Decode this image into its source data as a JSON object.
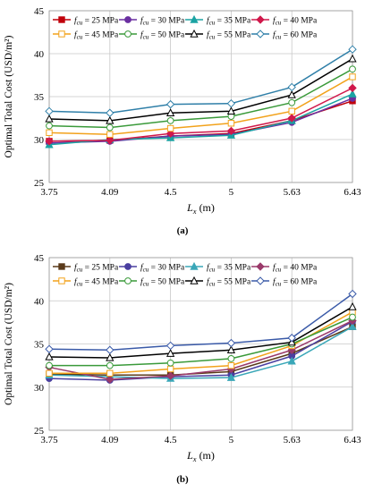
{
  "chart_data": [
    {
      "type": "line",
      "panel_label": "(a)",
      "ylabel": "Optimal Total Cost (USD/m²)",
      "xlabel_main": "L",
      "xlabel_sub": "x",
      "xlabel_unit": " (m)",
      "categories": [
        "3.75",
        "4.09",
        "4.5",
        "5",
        "5.63",
        "6.43"
      ],
      "ylim": [
        25,
        45
      ],
      "yticks": [
        "25",
        "30",
        "35",
        "40",
        "45"
      ],
      "grid": true,
      "legend_position": "top",
      "series": [
        {
          "name": "25 MPa",
          "color": "#c0000b",
          "marker": "square-filled",
          "values": [
            29.8,
            29.9,
            30.4,
            30.7,
            32.2,
            34.5
          ]
        },
        {
          "name": "30 MPa",
          "color": "#6a2fa0",
          "marker": "circle-filled",
          "values": [
            29.6,
            29.8,
            30.4,
            30.6,
            32.0,
            34.8
          ]
        },
        {
          "name": "35 MPa",
          "color": "#1aa3a3",
          "marker": "triangle-filled",
          "values": [
            29.4,
            30.0,
            30.2,
            30.5,
            32.2,
            35.3
          ]
        },
        {
          "name": "40 MPa",
          "color": "#d0184b",
          "marker": "diamond-filled",
          "values": [
            29.8,
            29.9,
            30.7,
            31.0,
            32.5,
            36.0
          ]
        },
        {
          "name": "45 MPa",
          "color": "#f2a21b",
          "marker": "square-open",
          "values": [
            30.8,
            30.6,
            31.3,
            31.9,
            33.3,
            37.3
          ]
        },
        {
          "name": "50 MPa",
          "color": "#3a9a3a",
          "marker": "circle-open",
          "values": [
            31.6,
            31.4,
            32.2,
            32.7,
            34.3,
            38.2
          ]
        },
        {
          "name": "55 MPa",
          "color": "#000000",
          "marker": "triangle-open",
          "values": [
            32.4,
            32.2,
            33.1,
            33.3,
            35.2,
            39.4
          ]
        },
        {
          "name": "60 MPa",
          "color": "#2f7fa8",
          "marker": "diamond-open",
          "values": [
            33.3,
            33.1,
            34.1,
            34.2,
            36.1,
            40.5
          ]
        }
      ]
    },
    {
      "type": "line",
      "panel_label": "(b)",
      "ylabel": "Optimal Total Cost (USD/m²)",
      "xlabel_main": "L",
      "xlabel_sub": "x",
      "xlabel_unit": " (m)",
      "categories": [
        "3.75",
        "4.09",
        "4.5",
        "5",
        "5.63",
        "6.43"
      ],
      "ylim": [
        25,
        45
      ],
      "yticks": [
        "25",
        "30",
        "35",
        "40",
        "45"
      ],
      "grid": true,
      "legend_position": "top",
      "series": [
        {
          "name": "25 MPa",
          "color": "#5a3a1a",
          "marker": "square-filled",
          "values": [
            31.5,
            31.4,
            31.4,
            31.8,
            33.9,
            37.0
          ]
        },
        {
          "name": "30 MPa",
          "color": "#4a3fa0",
          "marker": "circle-filled",
          "values": [
            31.0,
            30.8,
            31.2,
            31.4,
            33.6,
            37.6
          ]
        },
        {
          "name": "35 MPa",
          "color": "#3aa7b8",
          "marker": "triangle-filled",
          "values": [
            31.4,
            31.2,
            31.0,
            31.1,
            33.0,
            37.0
          ]
        },
        {
          "name": "40 MPa",
          "color": "#9a3a6a",
          "marker": "diamond-filled",
          "values": [
            32.3,
            30.9,
            31.3,
            32.1,
            34.3,
            37.7
          ]
        },
        {
          "name": "45 MPa",
          "color": "#f2a21b",
          "marker": "square-open",
          "values": [
            31.6,
            31.6,
            32.1,
            32.5,
            34.8,
            38.7
          ]
        },
        {
          "name": "50 MPa",
          "color": "#3a9a3a",
          "marker": "circle-open",
          "values": [
            32.5,
            32.5,
            32.8,
            33.3,
            35.0,
            38.1
          ]
        },
        {
          "name": "55 MPa",
          "color": "#000000",
          "marker": "triangle-open",
          "values": [
            33.5,
            33.4,
            33.9,
            34.3,
            35.2,
            39.3
          ]
        },
        {
          "name": "60 MPa",
          "color": "#3a5aa8",
          "marker": "diamond-open",
          "values": [
            34.4,
            34.3,
            34.8,
            35.1,
            35.7,
            40.8
          ]
        }
      ]
    }
  ],
  "legend_prefix_main": "f",
  "legend_prefix_sub": "cu",
  "legend_eq": " = "
}
